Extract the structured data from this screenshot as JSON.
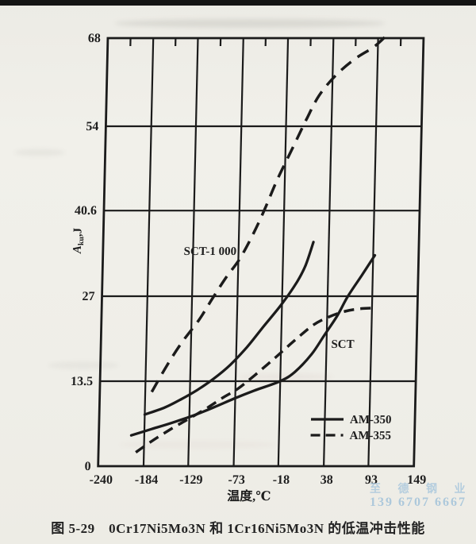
{
  "page": {
    "caption": "图 5-29　0Cr17Ni5Mo3N 和 1Cr16Ni5Mo3N 的低温冲击性能",
    "watermark": {
      "line1": "至 德 钢 业",
      "line2": "139 6707 6667",
      "color": "#a7c6dd"
    }
  },
  "chart_data": {
    "type": "line",
    "title": "",
    "xlabel": "温度,℃",
    "ylabel": "Aku,J",
    "xlim": [
      -240,
      149
    ],
    "ylim": [
      0,
      68
    ],
    "x_tick_values": [
      -240,
      -184,
      -129,
      -73,
      -18,
      38,
      93,
      149
    ],
    "x_tick_labels": [
      "-240",
      "-184",
      "-129",
      "-73",
      "-18",
      "38",
      "93",
      "149"
    ],
    "y_tick_values": [
      0,
      13.5,
      27,
      40.6,
      54,
      68
    ],
    "y_tick_labels": [
      "0",
      "13.5",
      "27",
      "40.6",
      "54",
      "68"
    ],
    "grid": true,
    "line_color": "#1b1b1b",
    "legend": {
      "position": "inside-bottom-right",
      "items": [
        {
          "label": "AM-350",
          "style": "solid"
        },
        {
          "label": "AM-355",
          "style": "dashed"
        }
      ]
    },
    "annotations": [
      {
        "text": "SCT-1 000",
        "x": -108,
        "y": 34.2
      },
      {
        "text": "SCT",
        "x": 58,
        "y": 19.4
      }
    ],
    "series": [
      {
        "name": "AM-350 SCT-1000",
        "alloy": "AM-350",
        "condition": "SCT-1000",
        "style": "solid",
        "points": [
          [
            -184,
            8.2
          ],
          [
            -160,
            9.3
          ],
          [
            -140,
            10.6
          ],
          [
            -120,
            12.1
          ],
          [
            -100,
            13.9
          ],
          [
            -80,
            16.1
          ],
          [
            -60,
            18.9
          ],
          [
            -40,
            22.2
          ],
          [
            -18,
            25.8
          ],
          [
            0,
            29.3
          ],
          [
            10,
            31.9
          ],
          [
            19,
            35.6
          ]
        ]
      },
      {
        "name": "AM-350 SCT",
        "alloy": "AM-350",
        "condition": "SCT",
        "style": "solid",
        "points": [
          [
            -200,
            4.9
          ],
          [
            -175,
            5.9
          ],
          [
            -150,
            6.9
          ],
          [
            -125,
            8.0
          ],
          [
            -100,
            9.3
          ],
          [
            -75,
            10.7
          ],
          [
            -50,
            12.0
          ],
          [
            -18,
            13.5
          ],
          [
            0,
            15.0
          ],
          [
            20,
            17.8
          ],
          [
            35,
            20.8
          ],
          [
            50,
            23.8
          ],
          [
            63,
            27.0
          ],
          [
            80,
            30.4
          ],
          [
            95,
            33.5
          ]
        ]
      },
      {
        "name": "AM-355 SCT-1000",
        "alloy": "AM-355",
        "condition": "SCT-1000",
        "style": "dashed",
        "points": [
          [
            -176,
            11.8
          ],
          [
            -158,
            16.0
          ],
          [
            -140,
            19.7
          ],
          [
            -120,
            23.2
          ],
          [
            -104,
            26.6
          ],
          [
            -88,
            29.9
          ],
          [
            -71,
            33.0
          ],
          [
            -55,
            37.0
          ],
          [
            -42,
            40.8
          ],
          [
            -27,
            45.6
          ],
          [
            -9,
            50.6
          ],
          [
            7,
            55.1
          ],
          [
            22,
            58.9
          ],
          [
            42,
            62.1
          ],
          [
            65,
            64.7
          ],
          [
            88,
            66.6
          ],
          [
            104,
            68.5
          ]
        ]
      },
      {
        "name": "AM-355 SCT",
        "alloy": "AM-355",
        "condition": "SCT",
        "style": "dashed",
        "points": [
          [
            -194,
            2.2
          ],
          [
            -172,
            4.2
          ],
          [
            -150,
            6.0
          ],
          [
            -130,
            7.5
          ],
          [
            -108,
            9.2
          ],
          [
            -88,
            10.9
          ],
          [
            -70,
            12.3
          ],
          [
            -50,
            14.4
          ],
          [
            -26,
            17.1
          ],
          [
            -3,
            19.8
          ],
          [
            21,
            22.4
          ],
          [
            40,
            23.7
          ],
          [
            60,
            24.6
          ],
          [
            78,
            25.0
          ],
          [
            92,
            25.1
          ]
        ]
      }
    ]
  }
}
